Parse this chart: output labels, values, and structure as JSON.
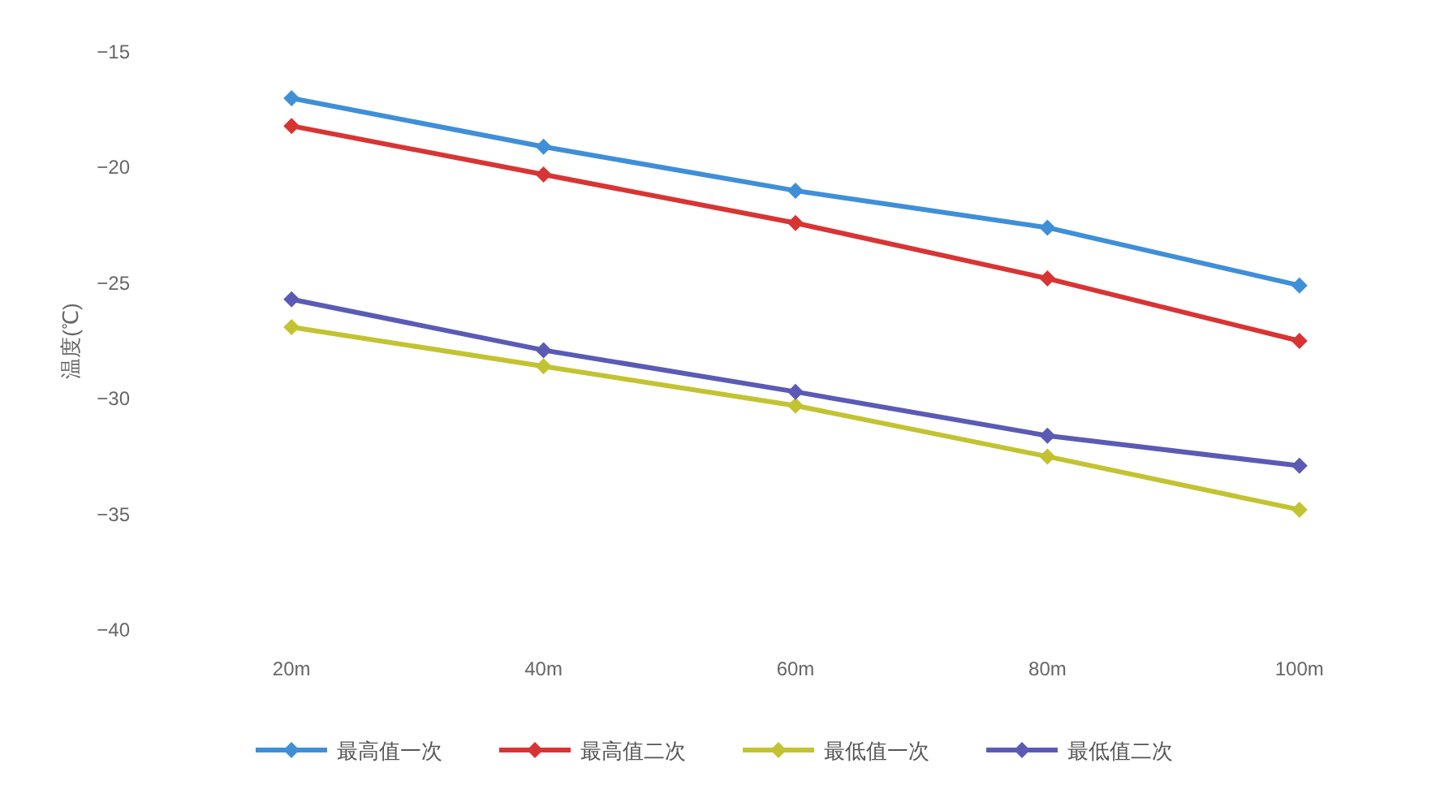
{
  "chart_data": {
    "type": "line",
    "ylabel": "温度(℃)",
    "categories": [
      "20m",
      "40m",
      "60m",
      "80m",
      "100m"
    ],
    "ylim": [
      -40,
      -15
    ],
    "yticks": [
      -40,
      -35,
      -30,
      -25,
      -20,
      -15
    ],
    "marker": "diamond",
    "legend": "bottom",
    "series": [
      {
        "name": "最高值一次",
        "color": "#3f8fd8",
        "values": [
          -17.0,
          -19.1,
          -21.0,
          -22.6,
          -25.1
        ]
      },
      {
        "name": "最高值二次",
        "color": "#d93434",
        "values": [
          -18.2,
          -20.3,
          -22.4,
          -24.8,
          -27.5
        ]
      },
      {
        "name": "最低值一次",
        "color": "#c3c332",
        "values": [
          -26.9,
          -28.6,
          -30.3,
          -32.5,
          -34.8
        ]
      },
      {
        "name": "最低值二次",
        "color": "#5b5bb5",
        "values": [
          -25.7,
          -27.9,
          -29.7,
          -31.6,
          -32.9
        ]
      }
    ]
  }
}
